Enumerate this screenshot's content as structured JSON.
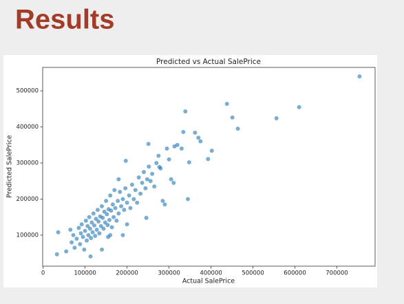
{
  "slide_title": "Results",
  "chart_data": {
    "type": "scatter",
    "title": "Predicted vs Actual SalePrice",
    "x_label": "Actual SalePrice",
    "y_label": "Predicted SalePrice",
    "color": "#1f77b4",
    "xlim": [
      -1000,
      791000
    ],
    "ylim": [
      14000,
      565000
    ],
    "xticks": [
      0,
      100000,
      200000,
      300000,
      400000,
      500000,
      600000,
      700000
    ],
    "yticks": [
      100000,
      200000,
      300000,
      400000,
      500000
    ],
    "x": [
      754000,
      610000,
      556000,
      438000,
      451000,
      464000,
      339000,
      370000,
      362000,
      375000,
      402000,
      393000,
      348000,
      311000,
      277000,
      197000,
      251000,
      313000,
      334000,
      246000,
      36000,
      33000,
      113000,
      55000,
      65000,
      68000,
      72000,
      75000,
      80000,
      85000,
      88000,
      90000,
      92000,
      95000,
      98000,
      100000,
      102000,
      104000,
      106000,
      108000,
      110000,
      112000,
      114000,
      116000,
      118000,
      120000,
      122000,
      124000,
      126000,
      128000,
      130000,
      132000,
      134000,
      136000,
      138000,
      140000,
      142000,
      144000,
      146000,
      148000,
      150000,
      152000,
      154000,
      156000,
      158000,
      160000,
      162000,
      164000,
      166000,
      168000,
      170000,
      172000,
      175000,
      178000,
      180000,
      183000,
      186000,
      190000,
      193000,
      196000,
      200000,
      205000,
      208000,
      212000,
      216000,
      220000,
      224000,
      228000,
      232000,
      236000,
      240000,
      244000,
      248000,
      252000,
      256000,
      260000,
      265000,
      270000,
      275000,
      280000,
      285000,
      290000,
      295000,
      300000,
      305000,
      320000,
      330000,
      345000,
      160000,
      190000,
      200000,
      140000,
      180000,
      155000
    ],
    "values": [
      540000,
      455000,
      424000,
      464000,
      426000,
      395000,
      443000,
      370000,
      384000,
      360000,
      334000,
      311000,
      302000,
      245000,
      289000,
      306000,
      353000,
      346000,
      386000,
      148000,
      108000,
      47000,
      41000,
      55000,
      115000,
      80000,
      100000,
      65000,
      90000,
      120000,
      75000,
      105000,
      130000,
      95000,
      60000,
      112000,
      140000,
      85000,
      125000,
      100000,
      150000,
      118000,
      92000,
      135000,
      108000,
      160000,
      127000,
      98000,
      145000,
      115000,
      170000,
      138000,
      105000,
      152000,
      125000,
      180000,
      148000,
      118000,
      165000,
      135000,
      195000,
      158000,
      128000,
      172000,
      142000,
      210000,
      168000,
      122000,
      185000,
      150000,
      225000,
      175000,
      140000,
      195000,
      160000,
      220000,
      180000,
      200000,
      170000,
      230000,
      190000,
      210000,
      175000,
      240000,
      200000,
      225000,
      190000,
      260000,
      215000,
      245000,
      275000,
      230000,
      255000,
      290000,
      250000,
      270000,
      235000,
      300000,
      320000,
      285000,
      195000,
      185000,
      340000,
      310000,
      255000,
      350000,
      340000,
      200000,
      100000,
      100000,
      130000,
      60000,
      255000,
      95000
    ]
  }
}
